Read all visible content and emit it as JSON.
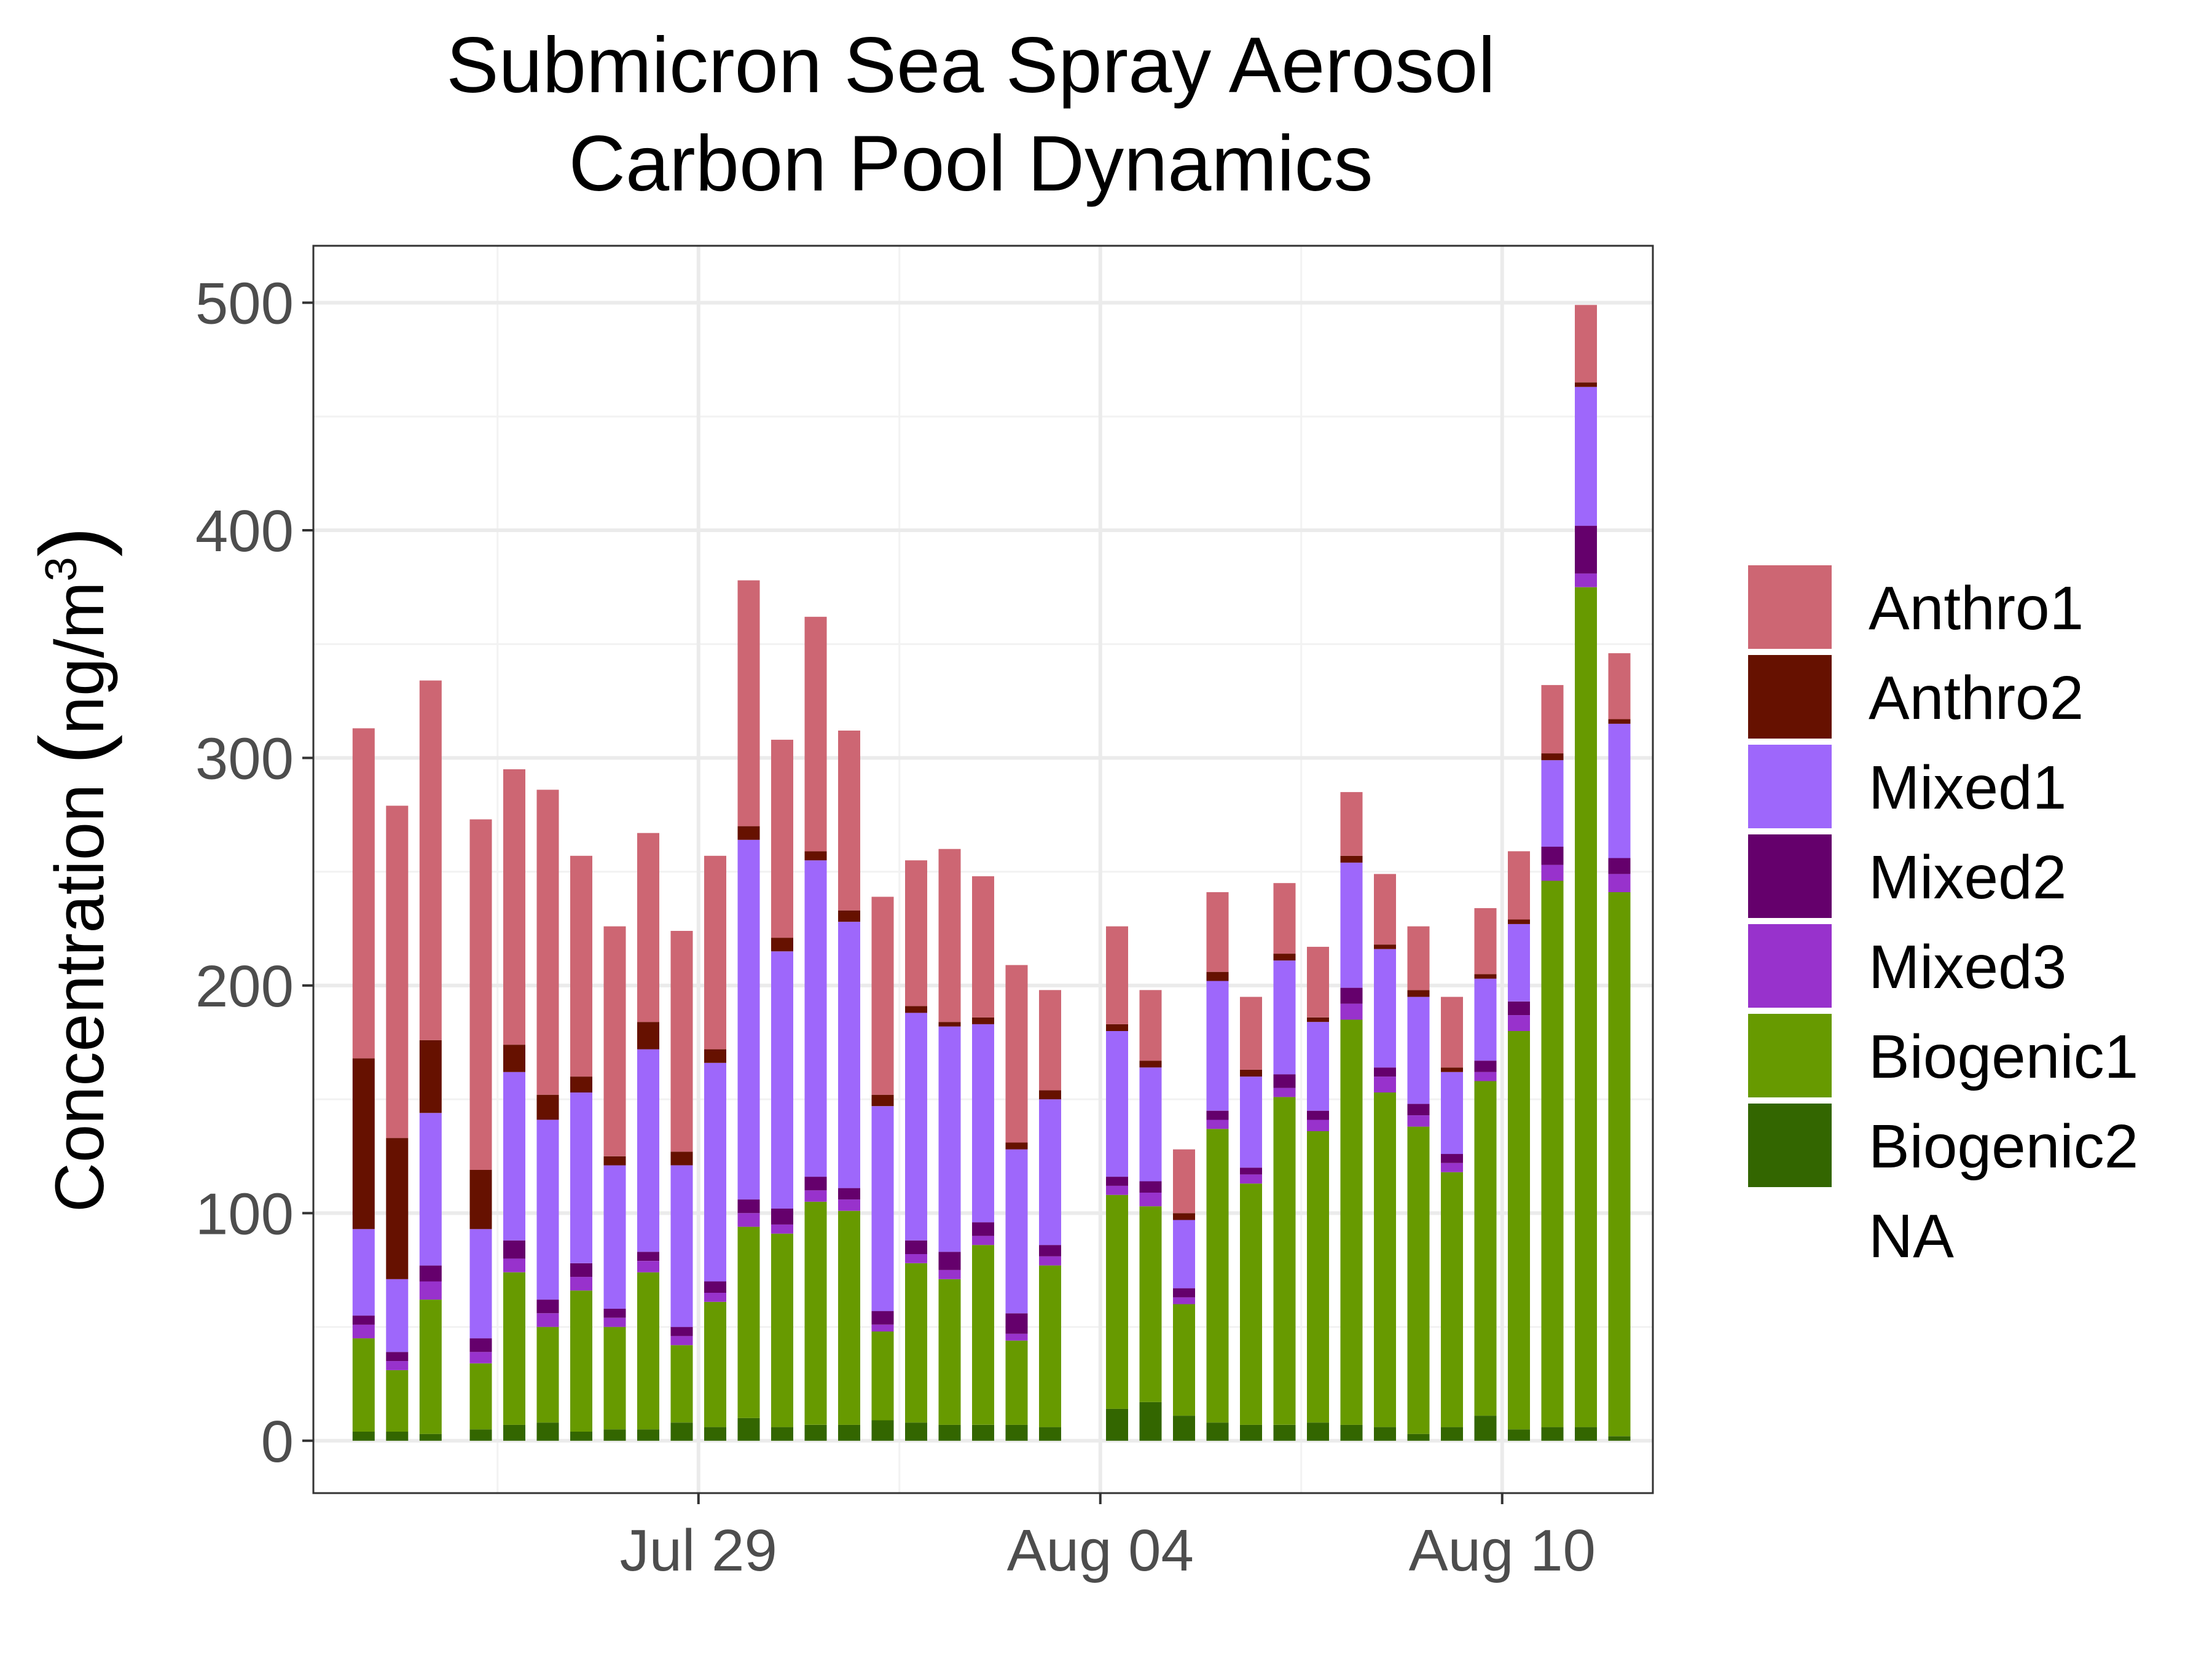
{
  "chart_data": {
    "type": "bar",
    "stacked": true,
    "title": [
      "Submicron Sea Spray Aerosol",
      "Carbon Pool Dynamics"
    ],
    "ylabel": "Concentration (ng/m3)",
    "ylabel_parts": {
      "base": "Concentration ",
      "open": "(",
      "unit": "ng/m",
      "sup": "3",
      "close": ")"
    },
    "xlabel": "",
    "ylim": [
      -23,
      525
    ],
    "yticks": [
      0,
      100,
      200,
      300,
      400,
      500
    ],
    "xticks": [
      {
        "label": "Jul 29",
        "date": "2019-07-29"
      },
      {
        "label": "Aug 04",
        "date": "2019-08-04"
      },
      {
        "label": "Aug 10",
        "date": "2019-08-10"
      }
    ],
    "xlim": [
      "2019-07-23T06:00",
      "2019-08-12T06:00"
    ],
    "grid": true,
    "legend_position": "right",
    "series_names": [
      "Anthro1",
      "Anthro2",
      "Mixed1",
      "Mixed2",
      "Mixed3",
      "Biogenic1",
      "Biogenic2",
      "NA"
    ],
    "colors": {
      "Anthro1": "#cd6673",
      "Anthro2": "#661100",
      "Mixed1": "#9e67fb",
      "Mixed2": "#65006c",
      "Mixed3": "#9832cc",
      "Biogenic1": "#679a00",
      "Biogenic2": "#336600",
      "NA": "#ffffff"
    },
    "samples": [
      {
        "time": "2019-07-24T00:00",
        "values": {
          "Biogenic2": 4,
          "Biogenic1": 41,
          "Mixed3": 6,
          "Mixed2": 4,
          "Mixed1": 38,
          "Anthro2": 75,
          "Anthro1": 145
        }
      },
      {
        "time": "2019-07-24T12:00",
        "values": {
          "Biogenic2": 4,
          "Biogenic1": 27,
          "Mixed3": 4,
          "Mixed2": 4,
          "Mixed1": 32,
          "Anthro2": 62,
          "Anthro1": 146
        }
      },
      {
        "time": "2019-07-25T00:00",
        "values": {
          "Biogenic2": 3,
          "Biogenic1": 59,
          "Mixed3": 8,
          "Mixed2": 7,
          "Mixed1": 67,
          "Anthro2": 32,
          "Anthro1": 158
        }
      },
      {
        "time": "2019-07-25T18:00",
        "values": {
          "Biogenic2": 5,
          "Biogenic1": 29,
          "Mixed3": 5,
          "Mixed2": 6,
          "Mixed1": 48,
          "Anthro2": 26,
          "Anthro1": 154
        }
      },
      {
        "time": "2019-07-26T06:00",
        "values": {
          "Biogenic2": 7,
          "Biogenic1": 67,
          "Mixed3": 6,
          "Mixed2": 8,
          "Mixed1": 74,
          "Anthro2": 12,
          "Anthro1": 121
        }
      },
      {
        "time": "2019-07-26T18:00",
        "values": {
          "Biogenic2": 8,
          "Biogenic1": 42,
          "Mixed3": 6,
          "Mixed2": 6,
          "Mixed1": 79,
          "Anthro2": 11,
          "Anthro1": 134
        }
      },
      {
        "time": "2019-07-27T06:00",
        "values": {
          "Biogenic2": 4,
          "Biogenic1": 62,
          "Mixed3": 6,
          "Mixed2": 6,
          "Mixed1": 75,
          "Anthro2": 7,
          "Anthro1": 97
        }
      },
      {
        "time": "2019-07-27T18:00",
        "values": {
          "Biogenic2": 5,
          "Biogenic1": 45,
          "Mixed3": 4,
          "Mixed2": 4,
          "Mixed1": 63,
          "Anthro2": 4,
          "Anthro1": 101
        }
      },
      {
        "time": "2019-07-28T06:00",
        "values": {
          "Biogenic2": 5,
          "Biogenic1": 69,
          "Mixed3": 5,
          "Mixed2": 4,
          "Mixed1": 89,
          "Anthro2": 12,
          "Anthro1": 83
        }
      },
      {
        "time": "2019-07-28T18:00",
        "values": {
          "Biogenic2": 8,
          "Biogenic1": 34,
          "Mixed3": 4,
          "Mixed2": 4,
          "Mixed1": 71,
          "Anthro2": 6,
          "Anthro1": 97
        }
      },
      {
        "time": "2019-07-29T06:00",
        "values": {
          "Biogenic2": 6,
          "Biogenic1": 55,
          "Mixed3": 4,
          "Mixed2": 5,
          "Mixed1": 96,
          "Anthro2": 6,
          "Anthro1": 85
        }
      },
      {
        "time": "2019-07-29T18:00",
        "values": {
          "Biogenic2": 10,
          "Biogenic1": 84,
          "Mixed3": 6,
          "Mixed2": 6,
          "Mixed1": 158,
          "Anthro2": 6,
          "Anthro1": 108
        }
      },
      {
        "time": "2019-07-30T06:00",
        "values": {
          "Biogenic2": 6,
          "Biogenic1": 85,
          "Mixed3": 4,
          "Mixed2": 7,
          "Mixed1": 113,
          "Anthro2": 6,
          "Anthro1": 87
        }
      },
      {
        "time": "2019-07-30T18:00",
        "values": {
          "Biogenic2": 7,
          "Biogenic1": 98,
          "Mixed3": 5,
          "Mixed2": 6,
          "Mixed1": 139,
          "Anthro2": 4,
          "Anthro1": 103
        }
      },
      {
        "time": "2019-07-31T06:00",
        "values": {
          "Biogenic2": 7,
          "Biogenic1": 94,
          "Mixed3": 5,
          "Mixed2": 5,
          "Mixed1": 117,
          "Anthro2": 5,
          "Anthro1": 79
        }
      },
      {
        "time": "2019-07-31T18:00",
        "values": {
          "Biogenic2": 9,
          "Biogenic1": 39,
          "Mixed3": 3,
          "Mixed2": 6,
          "Mixed1": 90,
          "Anthro2": 5,
          "Anthro1": 87
        }
      },
      {
        "time": "2019-08-01T06:00",
        "values": {
          "Biogenic2": 8,
          "Biogenic1": 70,
          "Mixed3": 4,
          "Mixed2": 6,
          "Mixed1": 100,
          "Anthro2": 3,
          "Anthro1": 64
        }
      },
      {
        "time": "2019-08-01T18:00",
        "values": {
          "Biogenic2": 7,
          "Biogenic1": 64,
          "Mixed3": 4,
          "Mixed2": 8,
          "Mixed1": 99,
          "Anthro2": 2,
          "Anthro1": 76
        }
      },
      {
        "time": "2019-08-02T06:00",
        "values": {
          "Biogenic2": 7,
          "Biogenic1": 79,
          "Mixed3": 4,
          "Mixed2": 6,
          "Mixed1": 87,
          "Anthro2": 3,
          "Anthro1": 62
        }
      },
      {
        "time": "2019-08-02T18:00",
        "values": {
          "Biogenic2": 7,
          "Biogenic1": 37,
          "Mixed3": 3,
          "Mixed2": 9,
          "Mixed1": 72,
          "Anthro2": 3,
          "Anthro1": 78
        }
      },
      {
        "time": "2019-08-03T06:00",
        "values": {
          "Biogenic2": 6,
          "Biogenic1": 71,
          "Mixed3": 4,
          "Mixed2": 5,
          "Mixed1": 64,
          "Anthro2": 4,
          "Anthro1": 44
        }
      },
      {
        "time": "2019-08-04T06:00",
        "values": {
          "Biogenic2": 14,
          "Biogenic1": 94,
          "Mixed3": 4,
          "Mixed2": 4,
          "Mixed1": 64,
          "Anthro2": 3,
          "Anthro1": 43
        }
      },
      {
        "time": "2019-08-04T18:00",
        "values": {
          "Biogenic2": 17,
          "Biogenic1": 86,
          "Mixed3": 6,
          "Mixed2": 5,
          "Mixed1": 50,
          "Anthro2": 3,
          "Anthro1": 31
        }
      },
      {
        "time": "2019-08-05T06:00",
        "values": {
          "Biogenic2": 11,
          "Biogenic1": 49,
          "Mixed3": 3,
          "Mixed2": 4,
          "Mixed1": 30,
          "Anthro2": 3,
          "Anthro1": 28
        }
      },
      {
        "time": "2019-08-05T18:00",
        "values": {
          "Biogenic2": 8,
          "Biogenic1": 129,
          "Mixed3": 4,
          "Mixed2": 4,
          "Mixed1": 57,
          "Anthro2": 4,
          "Anthro1": 35
        }
      },
      {
        "time": "2019-08-06T06:00",
        "values": {
          "Biogenic2": 7,
          "Biogenic1": 106,
          "Mixed3": 4,
          "Mixed2": 3,
          "Mixed1": 40,
          "Anthro2": 3,
          "Anthro1": 32
        }
      },
      {
        "time": "2019-08-06T18:00",
        "values": {
          "Biogenic2": 7,
          "Biogenic1": 144,
          "Mixed3": 4,
          "Mixed2": 6,
          "Mixed1": 50,
          "Anthro2": 3,
          "Anthro1": 31
        }
      },
      {
        "time": "2019-08-07T06:00",
        "values": {
          "Biogenic2": 8,
          "Biogenic1": 128,
          "Mixed3": 5,
          "Mixed2": 4,
          "Mixed1": 39,
          "Anthro2": 2,
          "Anthro1": 31
        }
      },
      {
        "time": "2019-08-07T18:00",
        "values": {
          "Biogenic2": 7,
          "Biogenic1": 178,
          "Mixed3": 7,
          "Mixed2": 7,
          "Mixed1": 55,
          "Anthro2": 3,
          "Anthro1": 28
        }
      },
      {
        "time": "2019-08-08T06:00",
        "values": {
          "Biogenic2": 6,
          "Biogenic1": 147,
          "Mixed3": 7,
          "Mixed2": 4,
          "Mixed1": 52,
          "Anthro2": 2,
          "Anthro1": 31
        }
      },
      {
        "time": "2019-08-08T18:00",
        "values": {
          "Biogenic2": 3,
          "Biogenic1": 135,
          "Mixed3": 5,
          "Mixed2": 5,
          "Mixed1": 47,
          "Anthro2": 3,
          "Anthro1": 28
        }
      },
      {
        "time": "2019-08-09T06:00",
        "values": {
          "Biogenic2": 6,
          "Biogenic1": 112,
          "Mixed3": 4,
          "Mixed2": 4,
          "Mixed1": 36,
          "Anthro2": 2,
          "Anthro1": 31
        }
      },
      {
        "time": "2019-08-09T18:00",
        "values": {
          "Biogenic2": 11,
          "Biogenic1": 147,
          "Mixed3": 4,
          "Mixed2": 5,
          "Mixed1": 36,
          "Anthro2": 2,
          "Anthro1": 29
        }
      },
      {
        "time": "2019-08-10T06:00",
        "values": {
          "Biogenic2": 5,
          "Biogenic1": 175,
          "Mixed3": 7,
          "Mixed2": 6,
          "Mixed1": 34,
          "Anthro2": 2,
          "Anthro1": 30
        }
      },
      {
        "time": "2019-08-10T18:00",
        "values": {
          "Biogenic2": 6,
          "Biogenic1": 240,
          "Mixed3": 7,
          "Mixed2": 8,
          "Mixed1": 38,
          "Anthro2": 3,
          "Anthro1": 30
        }
      },
      {
        "time": "2019-08-11T06:00",
        "values": {
          "Biogenic2": 6,
          "Biogenic1": 369,
          "Mixed3": 6,
          "Mixed2": 21,
          "Mixed1": 61,
          "Anthro2": 2,
          "Anthro1": 34
        }
      },
      {
        "time": "2019-08-11T18:00",
        "values": {
          "Biogenic2": 2,
          "Biogenic1": 239,
          "Mixed3": 8,
          "Mixed2": 7,
          "Mixed1": 59,
          "Anthro2": 2,
          "Anthro1": 29
        }
      }
    ]
  }
}
